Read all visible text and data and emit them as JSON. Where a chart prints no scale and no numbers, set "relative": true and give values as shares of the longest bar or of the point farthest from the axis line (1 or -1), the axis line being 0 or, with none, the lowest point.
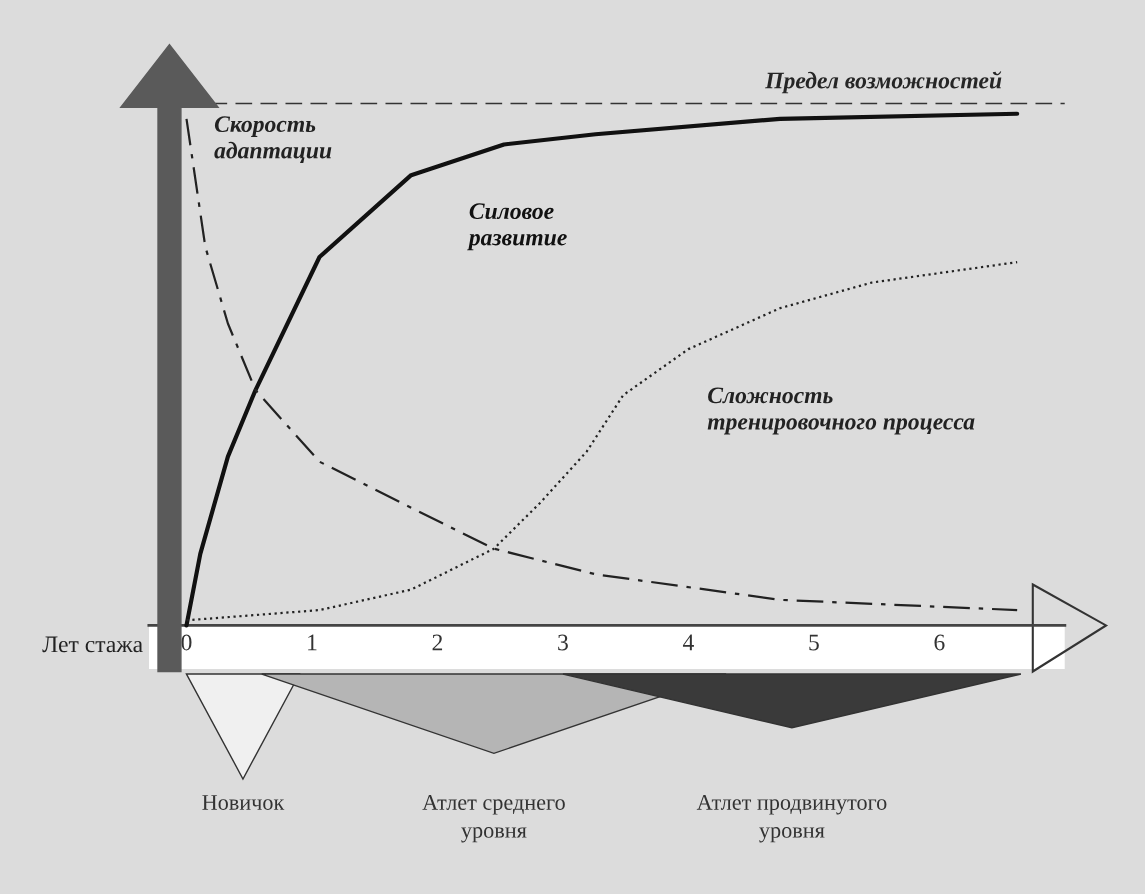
{
  "chart_data": {
    "type": "line",
    "relative": true,
    "xlabel": "Лет стажа",
    "xlim": [
      -0.3,
      7.0
    ],
    "xticks": [
      0,
      1,
      2,
      3,
      4,
      5,
      6
    ],
    "series": [
      {
        "name": "Силовое развитие",
        "color": "#111111",
        "line_style": "solid",
        "x": [
          0,
          0.11,
          0.33,
          0.55,
          1.06,
          1.79,
          2.53,
          3.26,
          4.73,
          6.62
        ],
        "values": [
          0,
          0.14,
          0.33,
          0.46,
          0.72,
          0.88,
          0.94,
          0.96,
          0.99,
          1
        ]
      },
      {
        "name": "Скорость адаптации",
        "color": "#222222",
        "line_style": "dashdot",
        "x": [
          0,
          0.15,
          0.33,
          0.55,
          1.06,
          1.79,
          2.45,
          3.26,
          4.73,
          6.62
        ],
        "values": [
          0.99,
          0.74,
          0.59,
          0.46,
          0.32,
          0.23,
          0.15,
          0.1,
          0.05,
          0.03
        ]
      },
      {
        "name": "Сложность тренировочного процесса",
        "color": "#222222",
        "line_style": "dotted",
        "x": [
          0,
          1.06,
          1.79,
          2.45,
          2.82,
          3.19,
          3.48,
          4.0,
          4.73,
          5.46,
          6.62
        ],
        "values": [
          0.01,
          0.03,
          0.07,
          0.15,
          0.24,
          0.34,
          0.45,
          0.54,
          0.62,
          0.67,
          0.71
        ]
      }
    ],
    "ref_lines": [
      {
        "axis": "y",
        "value": 1.02,
        "label": "Предел возможностей",
        "line_style": "dashed",
        "color": "#333333"
      }
    ],
    "annotations": [
      "Новичок",
      "Атлет среднего уровня",
      "Атлет продвинутого уровня"
    ],
    "grid": false
  }
}
